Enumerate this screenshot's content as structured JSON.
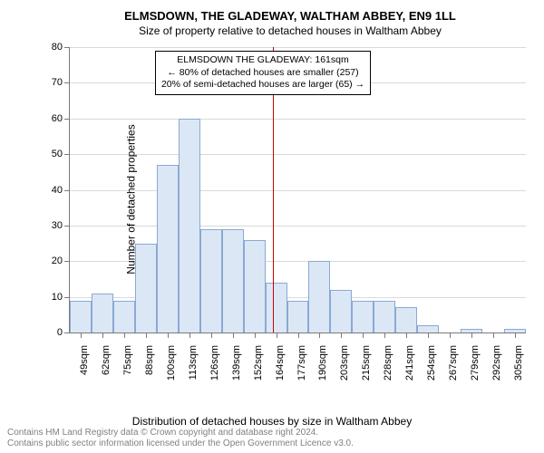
{
  "chart": {
    "type": "histogram",
    "title_main": "ELMSDOWN, THE GLADEWAY, WALTHAM ABBEY, EN9 1LL",
    "title_sub": "Size of property relative to detached houses in Waltham Abbey",
    "title_fontsize": 13,
    "subtitle_fontsize": 12,
    "ylabel": "Number of detached properties",
    "xlabel": "Distribution of detached houses by size in Waltham Abbey",
    "label_fontsize": 12,
    "tick_fontsize": 11,
    "background_color": "#ffffff",
    "axis_color": "#7a7a7a",
    "grid_color": "#d9d9d9",
    "bar_fill": "#dce7f6",
    "bar_stroke": "#89a9d3",
    "ref_line_color": "#cc0000",
    "ylim": [
      0,
      80
    ],
    "ytick_step": 10,
    "categories": [
      "49sqm",
      "62sqm",
      "75sqm",
      "88sqm",
      "100sqm",
      "113sqm",
      "126sqm",
      "139sqm",
      "152sqm",
      "164sqm",
      "177sqm",
      "190sqm",
      "203sqm",
      "215sqm",
      "228sqm",
      "241sqm",
      "254sqm",
      "267sqm",
      "279sqm",
      "292sqm",
      "305sqm"
    ],
    "values": [
      9,
      11,
      9,
      25,
      47,
      60,
      29,
      29,
      26,
      14,
      9,
      20,
      12,
      9,
      9,
      7,
      2,
      0,
      1,
      0,
      1
    ],
    "bar_width_ratio": 1.0,
    "reference_index": 8.85,
    "annotation": {
      "line1": "ELMSDOWN THE GLADEWAY: 161sqm",
      "line2": "← 80% of detached houses are smaller (257)",
      "line3": "20% of semi-detached houses are larger (65) →",
      "border_color": "#000000",
      "fontsize": 10.5
    }
  },
  "footer": {
    "line1": "Contains HM Land Registry data © Crown copyright and database right 2024.",
    "line2": "Contains public sector information licensed under the Open Government Licence v3.0.",
    "color": "#808080",
    "fontsize": 10
  }
}
